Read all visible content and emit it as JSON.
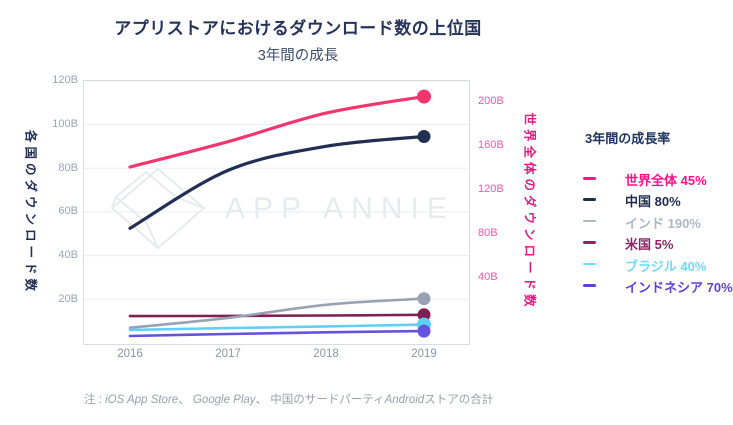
{
  "title": "アプリストアにおけるダウンロード数の上位国",
  "subtitle": "3年間の成長",
  "watermark": {
    "text": "APP ANNIE",
    "logo": "app-annie-diamond",
    "color": "#E8EAED"
  },
  "legend": {
    "title": "3年間の成長率",
    "items": [
      {
        "key": "world",
        "label": "世界全体",
        "growth": "45%",
        "color": "#FF1285"
      },
      {
        "key": "china",
        "label": "中国",
        "growth": "80%",
        "color": "#1E2B4E"
      },
      {
        "key": "india",
        "label": "インド",
        "growth": "190%",
        "color": "#AEB6C6"
      },
      {
        "key": "usa",
        "label": "米国",
        "growth": "5%",
        "color": "#8A2566"
      },
      {
        "key": "brazil",
        "label": "ブラジル",
        "growth": "40%",
        "color": "#72D9F9"
      },
      {
        "key": "indonesia",
        "label": "インドネシア",
        "growth": "70%",
        "color": "#5C43D6"
      }
    ]
  },
  "chart_data": {
    "type": "line",
    "x": [
      "2016",
      "2017",
      "2018",
      "2019"
    ],
    "left_axis": {
      "label": "各国のダウンロード数",
      "unit": "B",
      "range": [
        0,
        120
      ],
      "ticks": [
        "120B",
        "100B",
        "80B",
        "60B",
        "40B",
        "20B"
      ]
    },
    "right_axis": {
      "label": "世界全体のダウンロード数",
      "unit": "B",
      "range": [
        0,
        220
      ],
      "ticks": [
        "200B",
        "160B",
        "120B",
        "80B",
        "40B"
      ]
    },
    "grid": true,
    "legend_position": "right",
    "series": [
      {
        "key": "usa",
        "name": "米国",
        "axis": "left",
        "color": "#7D2155",
        "growth": "5%",
        "values": [
          12.3,
          12.4,
          12.6,
          12.9
        ]
      },
      {
        "key": "india",
        "name": "インド",
        "axis": "left",
        "color": "#99A2B4",
        "growth": "190%",
        "values": [
          7,
          11.5,
          17.5,
          20.3
        ]
      },
      {
        "key": "brazil",
        "name": "ブラジル",
        "axis": "left",
        "color": "#5FD0F5",
        "growth": "40%",
        "values": [
          6,
          6.8,
          7.6,
          8.4
        ]
      },
      {
        "key": "indonesia",
        "name": "インドネシア",
        "axis": "left",
        "color": "#6553E0",
        "growth": "70%",
        "values": [
          3.2,
          4.1,
          4.9,
          5.45
        ]
      },
      {
        "key": "world",
        "name": "世界全体",
        "axis": "right",
        "color": "#F2366F",
        "growth": "45%",
        "values": [
          140,
          163,
          189,
          204
        ]
      },
      {
        "key": "china",
        "name": "中国",
        "axis": "left",
        "color": "#222E52",
        "growth": "80%",
        "values": [
          52.5,
          79,
          90,
          94.5
        ]
      }
    ]
  },
  "note_parts": [
    {
      "text": "注 : ",
      "italic": false
    },
    {
      "text": "iOS App Store",
      "italic": true
    },
    {
      "text": "、 ",
      "italic": false
    },
    {
      "text": "Google Play",
      "italic": true
    },
    {
      "text": "、 中国のサードパーティ",
      "italic": false
    },
    {
      "text": "Android",
      "italic": true
    },
    {
      "text": "ストアの合計",
      "italic": false
    }
  ]
}
